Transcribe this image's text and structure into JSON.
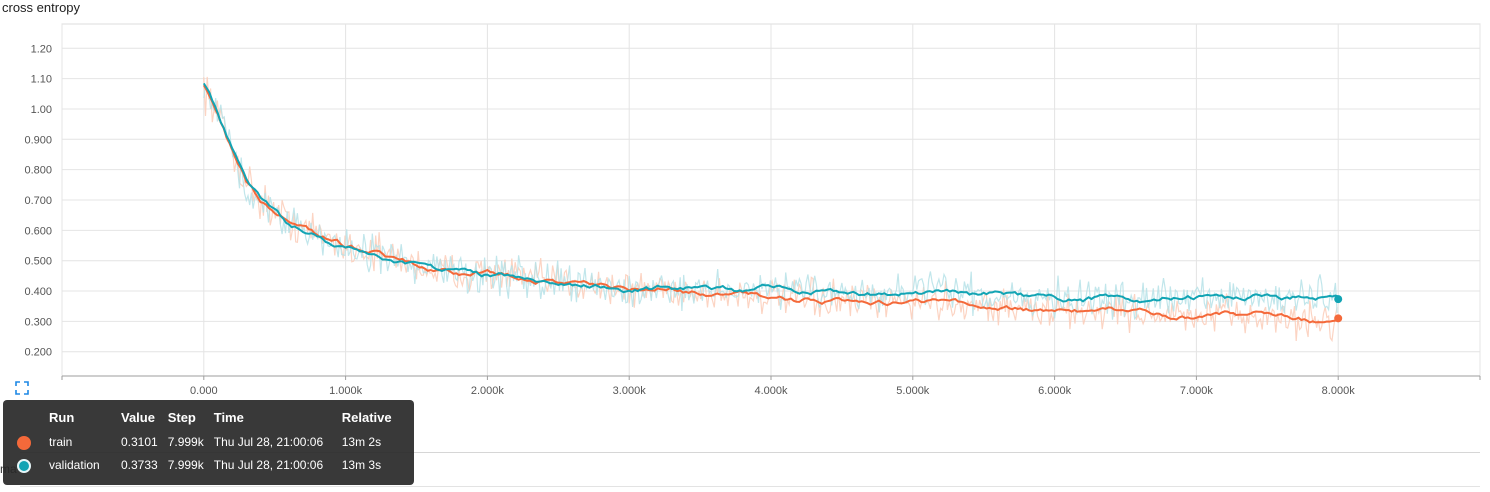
{
  "chart_data": {
    "type": "line",
    "title": "cross entropy",
    "xlabel": "",
    "ylabel": "",
    "xlim": [
      -1000,
      9000
    ],
    "ylim": [
      0.12,
      1.28
    ],
    "grid": true,
    "x_ticks": [
      0,
      1000,
      2000,
      3000,
      4000,
      5000,
      6000,
      7000,
      8000
    ],
    "x_tick_labels": [
      "0.000",
      "1.000k",
      "2.000k",
      "3.000k",
      "4.000k",
      "5.000k",
      "6.000k",
      "7.000k",
      "8.000k"
    ],
    "y_ticks": [
      0.2,
      0.3,
      0.4,
      0.5,
      0.6,
      0.7,
      0.8,
      0.9,
      1.0,
      1.1,
      1.2
    ],
    "y_tick_labels": [
      "0.200",
      "0.300",
      "0.400",
      "0.500",
      "0.600",
      "0.700",
      "0.800",
      "0.900",
      "1.00",
      "1.10",
      "1.20"
    ],
    "series": [
      {
        "name": "train",
        "color": "#f4693a",
        "x": [
          0,
          100,
          200,
          300,
          400,
          500,
          600,
          800,
          1000,
          1200,
          1400,
          1600,
          1800,
          2000,
          2200,
          2400,
          2600,
          2800,
          3000,
          3200,
          3400,
          3600,
          3800,
          4000,
          4200,
          4400,
          4600,
          4800,
          5000,
          5200,
          5400,
          5600,
          5800,
          6000,
          6200,
          6400,
          6600,
          6800,
          7000,
          7200,
          7400,
          7600,
          7800,
          8000
        ],
        "values": [
          1.08,
          0.98,
          0.86,
          0.76,
          0.7,
          0.66,
          0.63,
          0.59,
          0.55,
          0.53,
          0.5,
          0.47,
          0.46,
          0.46,
          0.45,
          0.43,
          0.43,
          0.42,
          0.4,
          0.41,
          0.4,
          0.39,
          0.39,
          0.38,
          0.37,
          0.37,
          0.36,
          0.36,
          0.37,
          0.36,
          0.36,
          0.35,
          0.34,
          0.33,
          0.33,
          0.34,
          0.33,
          0.32,
          0.31,
          0.32,
          0.32,
          0.31,
          0.3,
          0.3101
        ]
      },
      {
        "name": "validation",
        "color": "#12a4b4",
        "x": [
          0,
          100,
          200,
          300,
          400,
          500,
          600,
          800,
          1000,
          1200,
          1400,
          1600,
          1800,
          2000,
          2200,
          2400,
          2600,
          2800,
          3000,
          3200,
          3400,
          3600,
          3800,
          4000,
          4200,
          4400,
          4600,
          4800,
          5000,
          5200,
          5400,
          5600,
          5800,
          6000,
          6200,
          6400,
          6600,
          6800,
          7000,
          7200,
          7400,
          7600,
          7800,
          8000
        ],
        "values": [
          1.09,
          0.99,
          0.87,
          0.76,
          0.7,
          0.66,
          0.62,
          0.58,
          0.54,
          0.51,
          0.49,
          0.47,
          0.46,
          0.45,
          0.45,
          0.43,
          0.42,
          0.42,
          0.4,
          0.41,
          0.41,
          0.41,
          0.4,
          0.41,
          0.4,
          0.4,
          0.39,
          0.39,
          0.39,
          0.4,
          0.39,
          0.39,
          0.38,
          0.38,
          0.37,
          0.38,
          0.37,
          0.38,
          0.38,
          0.37,
          0.38,
          0.37,
          0.38,
          0.3733
        ]
      }
    ]
  },
  "tooltip": {
    "headers": {
      "run": "Run",
      "value": "Value",
      "step": "Step",
      "time": "Time",
      "relative": "Relative"
    },
    "rows": [
      {
        "run": "train",
        "value": "0.3101",
        "step": "7.999k",
        "time": "Thu Jul 28, 21:00:06",
        "relative": "13m 2s",
        "color": "#f4693a"
      },
      {
        "run": "validation",
        "value": "0.3733",
        "step": "7.999k",
        "time": "Thu Jul 28, 21:00:06",
        "relative": "13m 3s",
        "color": "#12a4b4"
      }
    ]
  },
  "below_text": "ma"
}
